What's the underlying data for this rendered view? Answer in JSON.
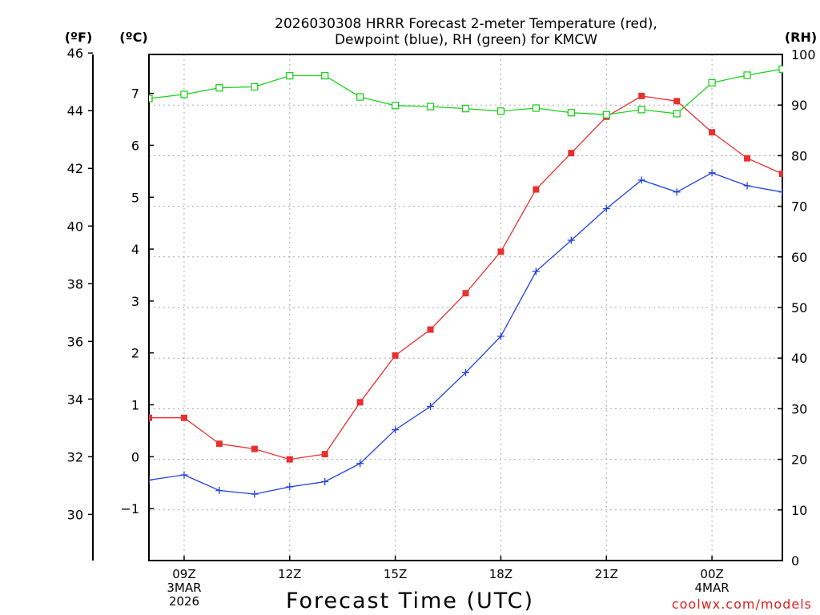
{
  "chart_data": {
    "type": "line",
    "title_line1": "2026030308 HRRR Forecast 2-meter Temperature (red),",
    "title_line2": "Dewpoint (blue), RH (green) for KMCW",
    "xlabel": "Forecast Time (UTC)",
    "credit": "coolwx.com/models",
    "unit_labels": {
      "fahrenheit": "(ºF)",
      "celsius": "(ºC)",
      "rh": "(RH)"
    },
    "x_ticks": [
      {
        "hour": 9,
        "lines": [
          "09Z",
          "3MAR",
          "2026"
        ]
      },
      {
        "hour": 12,
        "lines": [
          "12Z"
        ]
      },
      {
        "hour": 15,
        "lines": [
          "15Z"
        ]
      },
      {
        "hour": 18,
        "lines": [
          "18Z"
        ]
      },
      {
        "hour": 21,
        "lines": [
          "21Z"
        ]
      },
      {
        "hour": 24,
        "lines": [
          "00Z",
          "4MAR"
        ]
      }
    ],
    "x_range_hours": [
      8,
      26
    ],
    "celsius_axis": {
      "range": [
        -2.0,
        7.75
      ],
      "ticks": [
        -1,
        0,
        1,
        2,
        3,
        4,
        5,
        6,
        7
      ]
    },
    "fahrenheit_axis": {
      "range": [
        28.4,
        45.95
      ],
      "ticks": [
        30,
        32,
        34,
        36,
        38,
        40,
        42,
        44,
        46
      ]
    },
    "rh_axis": {
      "range": [
        0,
        100
      ],
      "ticks": [
        0,
        10,
        20,
        30,
        40,
        50,
        60,
        70,
        80,
        90,
        100
      ]
    },
    "hours": [
      8,
      9,
      10,
      11,
      12,
      13,
      14,
      15,
      16,
      17,
      18,
      19,
      20,
      21,
      22,
      23,
      24,
      25,
      26
    ],
    "series": [
      {
        "name": "Temperature",
        "color": "#e83030",
        "marker": "filled-square",
        "axis": "celsius",
        "values": [
          0.75,
          0.75,
          0.25,
          0.15,
          -0.05,
          0.05,
          1.05,
          1.95,
          2.45,
          3.15,
          3.95,
          5.15,
          5.85,
          6.55,
          6.95,
          6.85,
          6.25,
          5.75,
          5.45
        ]
      },
      {
        "name": "Dewpoint",
        "color": "#2040e0",
        "marker": "plus",
        "axis": "celsius",
        "values": [
          -0.45,
          -0.35,
          -0.65,
          -0.72,
          -0.58,
          -0.48,
          -0.13,
          0.52,
          0.97,
          1.62,
          2.32,
          3.57,
          4.17,
          4.78,
          5.33,
          5.1,
          5.47,
          5.22,
          5.1
        ]
      },
      {
        "name": "RH",
        "color": "#20d020",
        "marker": "open-square",
        "axis": "rh",
        "values": [
          91.3,
          92.1,
          93.4,
          93.6,
          95.8,
          95.8,
          91.6,
          89.9,
          89.7,
          89.3,
          88.8,
          89.4,
          88.5,
          88.1,
          89.1,
          88.3,
          94.4,
          95.9,
          97.1
        ]
      }
    ]
  }
}
